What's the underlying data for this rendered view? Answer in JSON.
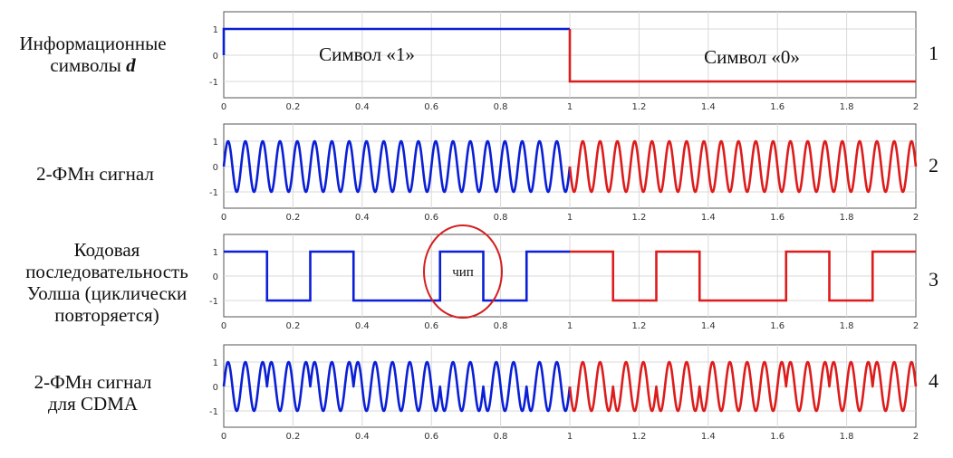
{
  "panels": [
    {
      "label_lines": [
        "Информационные",
        "символы"
      ],
      "label_italic": "d",
      "number": "1"
    },
    {
      "label_lines": [
        "2-ФМн сигнал"
      ],
      "number": "2"
    },
    {
      "label_lines": [
        "Кодовая",
        "последовательность",
        "Уолша (циклически",
        "повторяется)"
      ],
      "number": "3"
    },
    {
      "label_lines": [
        "2-ФМн сигнал",
        "для CDMA"
      ],
      "number": "4"
    }
  ],
  "annotations": {
    "symbol1": "Символ «1»",
    "symbol0": "Символ «0»",
    "chip": "чип"
  },
  "colors": {
    "first_half": "#0a1fd6",
    "second_half": "#dd1c1c",
    "axis": "#555555",
    "grid": "#d8d8d8"
  },
  "chart_data": [
    {
      "type": "line",
      "name": "data-symbols",
      "xlim": [
        0,
        2
      ],
      "ylim": [
        -1,
        1
      ],
      "xticks": [
        "0",
        "0.2",
        "0.4",
        "0.6",
        "0.8",
        "1",
        "1.2",
        "1.4",
        "1.6",
        "1.8",
        "2"
      ],
      "yticks": [
        "1",
        "0",
        "-1"
      ],
      "symbols": [
        1,
        -1
      ],
      "grid": true
    },
    {
      "type": "line",
      "name": "bpsk-signal",
      "xlim": [
        0,
        2
      ],
      "ylim": [
        -1,
        1
      ],
      "xticks": [
        "0",
        "0.2",
        "0.4",
        "0.6",
        "0.8",
        "1",
        "1.2",
        "1.4",
        "1.6",
        "1.8",
        "2"
      ],
      "yticks": [
        "1",
        "0",
        "-1"
      ],
      "carrier_cycles": 40,
      "grid": true
    },
    {
      "type": "line",
      "name": "walsh-code",
      "xlim": [
        0,
        2
      ],
      "ylim": [
        -1,
        1
      ],
      "xticks": [
        "0",
        "0.2",
        "0.4",
        "0.6",
        "0.8",
        "1",
        "1.2",
        "1.4",
        "1.6",
        "1.8",
        "2"
      ],
      "yticks": [
        "1",
        "0",
        "-1"
      ],
      "chips": [
        1,
        -1,
        1,
        -1,
        -1,
        1,
        -1,
        1
      ],
      "chip_duration": 0.125,
      "grid": true
    },
    {
      "type": "line",
      "name": "cdma-signal",
      "xlim": [
        0,
        2
      ],
      "ylim": [
        -1,
        1
      ],
      "xticks": [
        "0",
        "0.2",
        "0.4",
        "0.6",
        "0.8",
        "1",
        "1.2",
        "1.4",
        "1.6",
        "1.8",
        "2"
      ],
      "yticks": [
        "1",
        "0",
        "-1"
      ],
      "carrier_cycles": 40,
      "grid": true
    }
  ]
}
